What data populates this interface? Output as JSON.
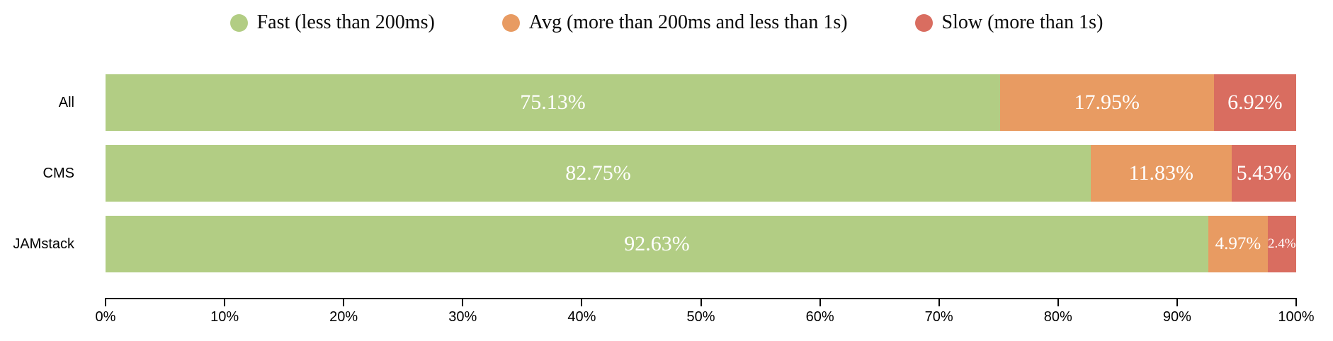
{
  "chart_data": {
    "type": "bar",
    "stacked": true,
    "orientation": "horizontal",
    "title": "",
    "xlabel": "",
    "ylabel": "",
    "grid": false,
    "legend_position": "top",
    "xlim": [
      0,
      100
    ],
    "x_ticks": [
      "0%",
      "10%",
      "20%",
      "30%",
      "40%",
      "50%",
      "60%",
      "70%",
      "80%",
      "90%",
      "100%"
    ],
    "categories": [
      "All",
      "CMS",
      "JAMstack"
    ],
    "series": [
      {
        "name": "Fast (less than 200ms)",
        "color": "#b2cd84",
        "values": [
          75.13,
          82.75,
          92.63
        ],
        "labels": [
          "75.13%",
          "82.75%",
          "92.63%"
        ]
      },
      {
        "name": "Avg (more than 200ms and less than 1s)",
        "color": "#e89b62",
        "values": [
          17.95,
          11.83,
          4.97
        ],
        "labels": [
          "17.95%",
          "11.83%",
          "4.97%"
        ]
      },
      {
        "name": "Slow (more than 1s)",
        "color": "#d96d60",
        "values": [
          6.92,
          5.43,
          2.4
        ],
        "labels": [
          "6.92%",
          "5.43%",
          "2.4%"
        ]
      }
    ],
    "value_label_color": "#ffffff"
  }
}
